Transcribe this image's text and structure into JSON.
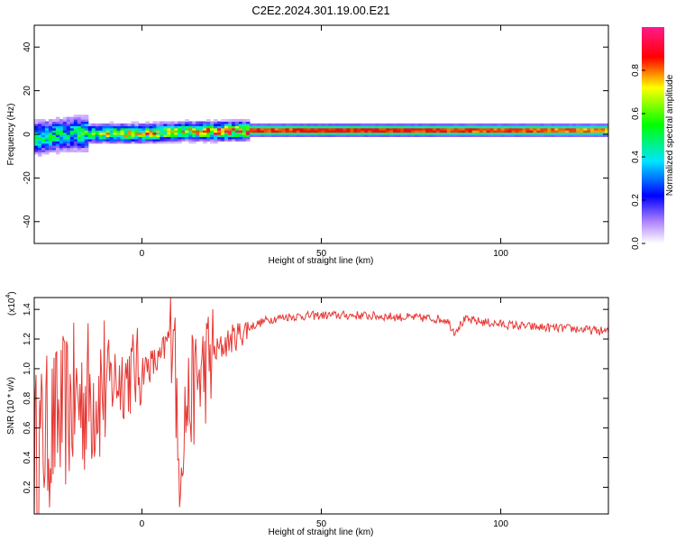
{
  "title": "C2E2.2024.301.19.00.E21",
  "chart_data": [
    {
      "type": "heatmap",
      "xlabel": "Height of straight line (km)",
      "ylabel": "Frequency (Hz)",
      "xlim": [
        -30,
        130
      ],
      "ylim": [
        -50,
        50
      ],
      "x_ticks": [
        0,
        50,
        100
      ],
      "y_ticks": [
        -40,
        -20,
        0,
        20,
        40
      ],
      "colorbar": {
        "label": "Normalized spectral amplitude",
        "range": [
          0,
          1
        ],
        "ticks": [
          0.0,
          0.2,
          0.4,
          0.6,
          0.8
        ]
      },
      "dominant_band": [
        {
          "x": -30,
          "f": -2,
          "amp": 0.5
        },
        {
          "x": -20,
          "f": 0,
          "amp": 0.45
        },
        {
          "x": -10,
          "f": 0,
          "amp": 0.7
        },
        {
          "x": 0,
          "f": 0,
          "amp": 0.75
        },
        {
          "x": 10,
          "f": 1,
          "amp": 0.7
        },
        {
          "x": 20,
          "f": 1,
          "amp": 0.85
        },
        {
          "x": 30,
          "f": 1.5,
          "amp": 0.9
        },
        {
          "x": 50,
          "f": 1.5,
          "amp": 0.95
        },
        {
          "x": 70,
          "f": 1.5,
          "amp": 0.95
        },
        {
          "x": 90,
          "f": 1.5,
          "amp": 0.9
        },
        {
          "x": 110,
          "f": 1.5,
          "amp": 0.9
        },
        {
          "x": 130,
          "f": 1.5,
          "amp": 0.85
        }
      ]
    },
    {
      "type": "line",
      "xlabel": "Height of straight line (km)",
      "ylabel": "SNR (10 * v/v)",
      "y_multiplier": "(x10",
      "y_multiplier_exp": "4",
      "y_multiplier_close": ")",
      "xlim": [
        -30,
        130
      ],
      "ylim": [
        0.02,
        1.48
      ],
      "x_ticks": [
        0,
        50,
        100
      ],
      "y_ticks": [
        0.2,
        0.4,
        0.6,
        0.8,
        1.0,
        1.2,
        1.4
      ],
      "series": [
        {
          "color": "#e53935",
          "envelope_x": [
            -30,
            -25,
            -20,
            -15,
            -10,
            -5,
            0,
            5,
            8,
            9,
            10,
            12,
            15,
            20,
            25,
            30,
            35,
            40,
            50,
            60,
            70,
            80,
            85,
            87,
            90,
            100,
            110,
            120,
            130
          ],
          "envelope_y": [
            0.45,
            0.6,
            0.75,
            0.82,
            0.9,
            0.95,
            1.0,
            1.05,
            1.25,
            1.45,
            0.3,
            0.7,
            0.9,
            1.1,
            1.2,
            1.28,
            1.33,
            1.35,
            1.36,
            1.36,
            1.35,
            1.34,
            1.33,
            1.25,
            1.33,
            1.3,
            1.28,
            1.27,
            1.25
          ]
        }
      ]
    }
  ]
}
